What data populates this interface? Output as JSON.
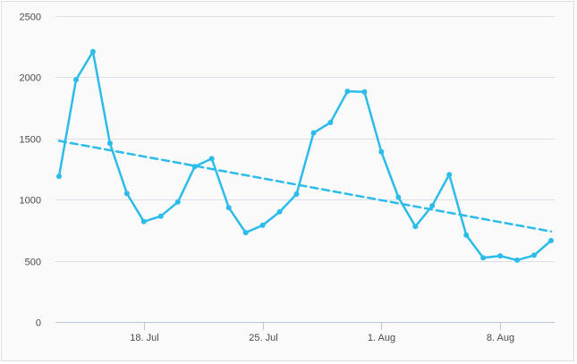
{
  "chart_data": {
    "type": "line",
    "title": "",
    "xlabel": "",
    "ylabel": "",
    "ylim": [
      0,
      2500
    ],
    "y_ticks": [
      "0",
      "500",
      "1000",
      "1500",
      "2000",
      "2500"
    ],
    "x_tick_labels": [
      "18. Jul",
      "25. Jul",
      "1. Aug",
      "8. Aug"
    ],
    "x_tick_dates": [
      "2017-07-18",
      "2017-07-25",
      "2017-08-01",
      "2017-08-08"
    ],
    "xlim": [
      "2017-07-13",
      "2017-08-11"
    ],
    "grid": true,
    "legend": "none",
    "series": [
      {
        "color": "#2bbcea",
        "style": "solid",
        "markers": true,
        "x": [
          "2017-07-13",
          "2017-07-14",
          "2017-07-15",
          "2017-07-16",
          "2017-07-17",
          "2017-07-18",
          "2017-07-19",
          "2017-07-20",
          "2017-07-21",
          "2017-07-22",
          "2017-07-23",
          "2017-07-24",
          "2017-07-25",
          "2017-07-26",
          "2017-07-27",
          "2017-07-28",
          "2017-07-29",
          "2017-07-30",
          "2017-07-31",
          "2017-08-01",
          "2017-08-02",
          "2017-08-03",
          "2017-08-04",
          "2017-08-05",
          "2017-08-06",
          "2017-08-07",
          "2017-08-08",
          "2017-08-09",
          "2017-08-10",
          "2017-08-11"
        ],
        "values": [
          1190,
          1980,
          2210,
          1460,
          1050,
          820,
          865,
          980,
          1270,
          1335,
          935,
          730,
          790,
          900,
          1045,
          1545,
          1630,
          1885,
          1880,
          1390,
          1020,
          780,
          950,
          1205,
          710,
          525,
          540,
          505,
          545,
          665
        ]
      },
      {
        "color": "#2bbcea",
        "style": "dashed",
        "markers": false,
        "x": [
          "2017-07-13",
          "2017-08-11"
        ],
        "values": [
          1480,
          740
        ]
      }
    ]
  }
}
